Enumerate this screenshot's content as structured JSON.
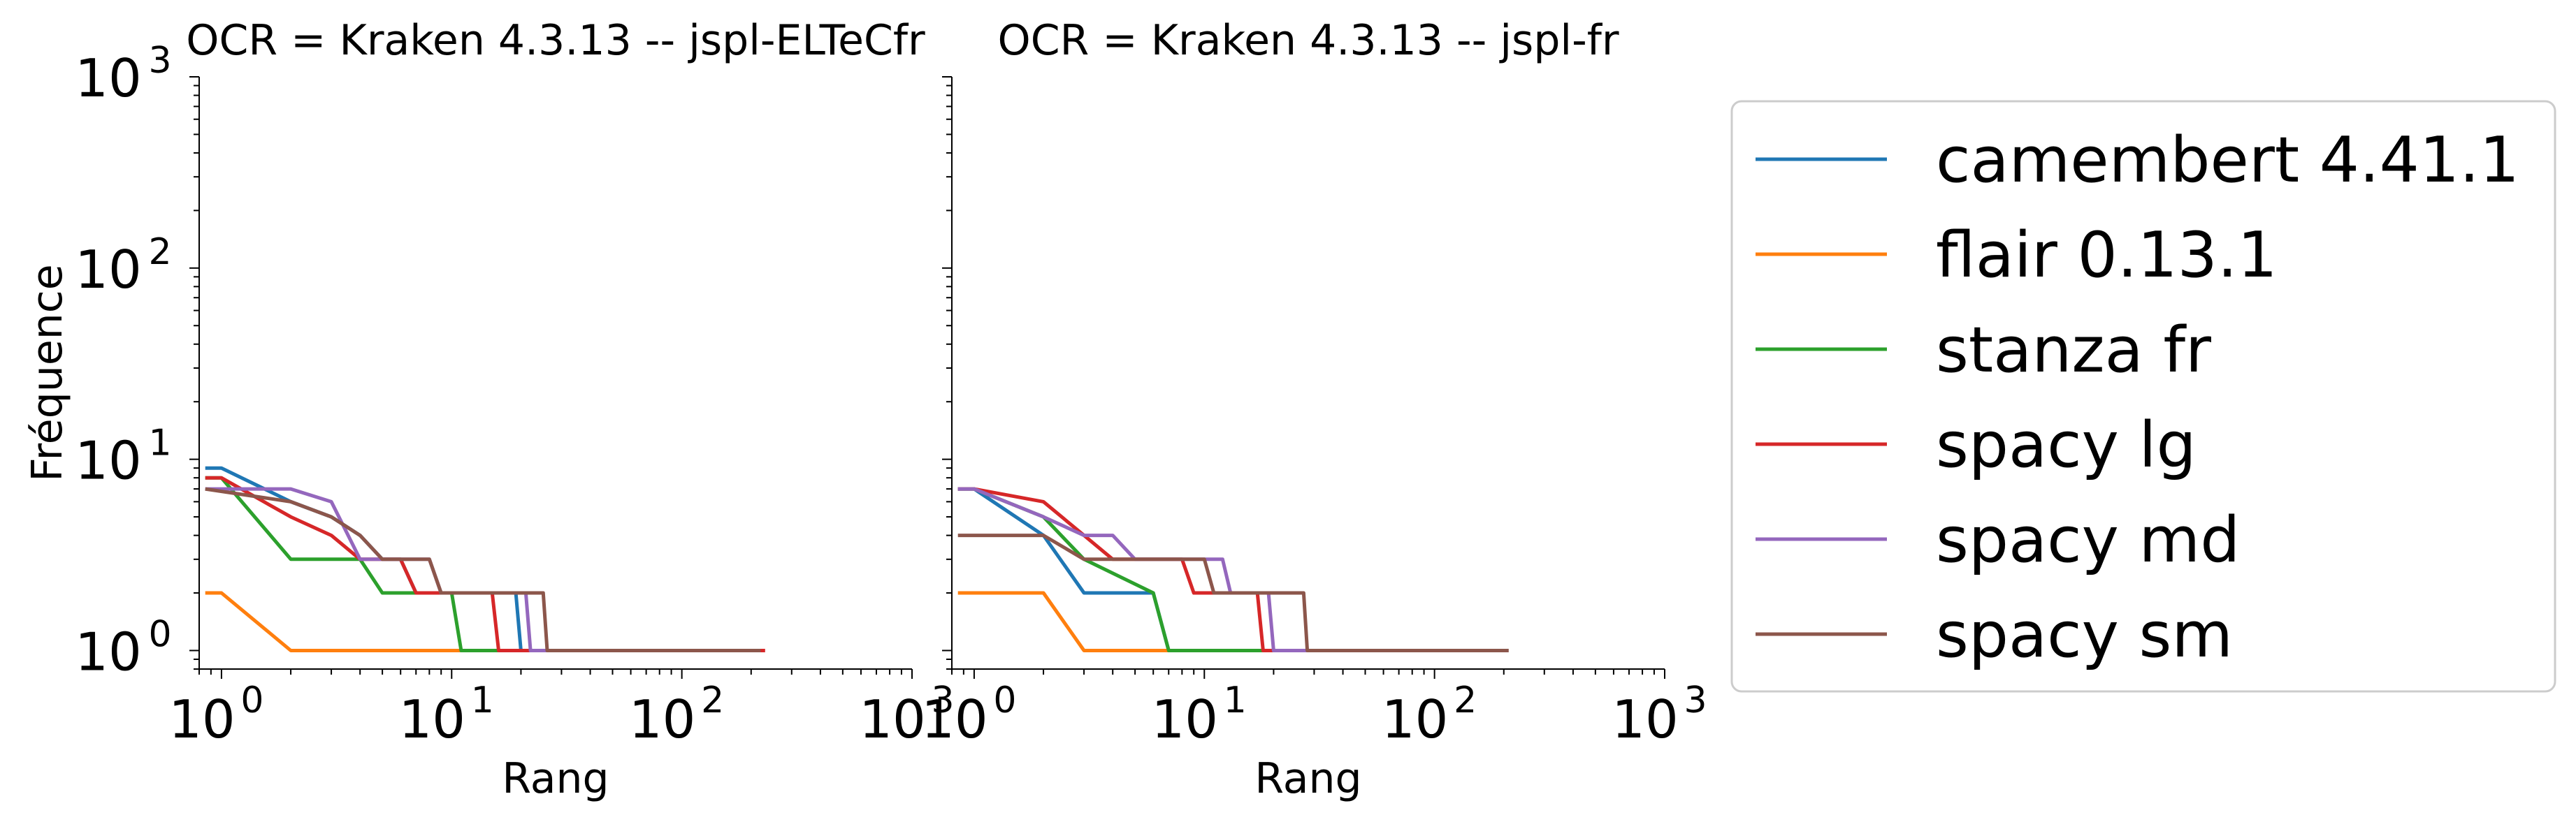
{
  "chart_data": [
    {
      "type": "line",
      "title": "OCR = Kraken 4.3.13 -- jspl-ELTeCfr",
      "xlabel": "Rang",
      "ylabel": "Fréquence",
      "xscale": "log",
      "yscale": "log",
      "xlim": [
        0.8,
        1000
      ],
      "ylim": [
        0.8,
        1000
      ],
      "xticks": [
        "10^0",
        "10^1",
        "10^2",
        "10^3"
      ],
      "yticks": [
        "10^0",
        "10^1",
        "10^2",
        "10^3"
      ],
      "grid": false,
      "series": [
        {
          "name": "camembert 4.41.1",
          "color": "#1f77b4",
          "points": [
            [
              0.85,
              9
            ],
            [
              1,
              9
            ],
            [
              2,
              6
            ],
            [
              3,
              5
            ],
            [
              4,
              4
            ],
            [
              5,
              3
            ],
            [
              6,
              3
            ],
            [
              7,
              2
            ],
            [
              19,
              2
            ],
            [
              20,
              1
            ],
            [
              210,
              1
            ]
          ]
        },
        {
          "name": "flair 0.13.1",
          "color": "#ff7f0e",
          "points": [
            [
              0.85,
              2
            ],
            [
              1,
              2
            ],
            [
              2,
              1
            ],
            [
              27,
              1
            ]
          ]
        },
        {
          "name": "stanza fr",
          "color": "#2ca02c",
          "points": [
            [
              0.85,
              8
            ],
            [
              1,
              8
            ],
            [
              2,
              3
            ],
            [
              4,
              3
            ],
            [
              5,
              2
            ],
            [
              10,
              2
            ],
            [
              11,
              1
            ],
            [
              100,
              1
            ]
          ]
        },
        {
          "name": "spacy lg",
          "color": "#d62728",
          "points": [
            [
              0.85,
              8
            ],
            [
              1,
              8
            ],
            [
              2,
              5
            ],
            [
              3,
              4
            ],
            [
              4,
              3
            ],
            [
              6,
              3
            ],
            [
              7,
              2
            ],
            [
              15,
              2
            ],
            [
              16,
              1
            ],
            [
              230,
              1
            ]
          ]
        },
        {
          "name": "spacy md",
          "color": "#9467bd",
          "points": [
            [
              0.85,
              7
            ],
            [
              2,
              7
            ],
            [
              3,
              6
            ],
            [
              4,
              3
            ],
            [
              8,
              3
            ],
            [
              9,
              2
            ],
            [
              21,
              2
            ],
            [
              22,
              1
            ],
            [
              200,
              1
            ]
          ]
        },
        {
          "name": "spacy sm",
          "color": "#8c564b",
          "points": [
            [
              0.85,
              7
            ],
            [
              2,
              6
            ],
            [
              3,
              5
            ],
            [
              4,
              4
            ],
            [
              5,
              3
            ],
            [
              8,
              3
            ],
            [
              9,
              2
            ],
            [
              25,
              2
            ],
            [
              26,
              1
            ],
            [
              220,
              1
            ]
          ]
        }
      ]
    },
    {
      "type": "line",
      "title": "OCR = Kraken 4.3.13 -- jspl-fr",
      "xlabel": "Rang",
      "ylabel": "",
      "xscale": "log",
      "yscale": "log",
      "xlim": [
        0.8,
        1000
      ],
      "ylim": [
        0.8,
        1000
      ],
      "xticks": [
        "10^0",
        "10^1",
        "10^2",
        "10^3"
      ],
      "grid": false,
      "series": [
        {
          "name": "camembert 4.41.1",
          "color": "#1f77b4",
          "points": [
            [
              0.85,
              7
            ],
            [
              1,
              7
            ],
            [
              2,
              4
            ],
            [
              3,
              2
            ],
            [
              6,
              2
            ],
            [
              7,
              1
            ],
            [
              15,
              1
            ],
            [
              16,
              1
            ],
            [
              100,
              1
            ]
          ]
        },
        {
          "name": "flair 0.13.1",
          "color": "#ff7f0e",
          "points": [
            [
              0.85,
              2
            ],
            [
              2,
              2
            ],
            [
              3,
              1
            ],
            [
              20,
              1
            ]
          ]
        },
        {
          "name": "stanza fr",
          "color": "#2ca02c",
          "points": [
            [
              0.85,
              7
            ],
            [
              1,
              7
            ],
            [
              2,
              5
            ],
            [
              3,
              3
            ],
            [
              6,
              2
            ],
            [
              7,
              1
            ],
            [
              100,
              1
            ]
          ]
        },
        {
          "name": "spacy lg",
          "color": "#d62728",
          "points": [
            [
              0.85,
              7
            ],
            [
              1,
              7
            ],
            [
              2,
              6
            ],
            [
              3,
              4
            ],
            [
              4,
              3
            ],
            [
              8,
              3
            ],
            [
              9,
              2
            ],
            [
              17,
              2
            ],
            [
              18,
              1
            ],
            [
              100,
              1
            ]
          ]
        },
        {
          "name": "spacy md",
          "color": "#9467bd",
          "points": [
            [
              0.85,
              7
            ],
            [
              1,
              7
            ],
            [
              2,
              5
            ],
            [
              3,
              4
            ],
            [
              4,
              4
            ],
            [
              5,
              3
            ],
            [
              12,
              3
            ],
            [
              13,
              2
            ],
            [
              19,
              2
            ],
            [
              20,
              1
            ],
            [
              100,
              1
            ]
          ]
        },
        {
          "name": "spacy sm",
          "color": "#8c564b",
          "points": [
            [
              0.85,
              4
            ],
            [
              2,
              4
            ],
            [
              3,
              3
            ],
            [
              10,
              3
            ],
            [
              11,
              2
            ],
            [
              27,
              2
            ],
            [
              28,
              1
            ],
            [
              210,
              1
            ]
          ]
        }
      ]
    }
  ],
  "legend": {
    "placement": "right",
    "entries": [
      "camembert 4.41.1",
      "flair 0.13.1",
      "stanza fr",
      "spacy lg",
      "spacy md",
      "spacy sm"
    ]
  }
}
